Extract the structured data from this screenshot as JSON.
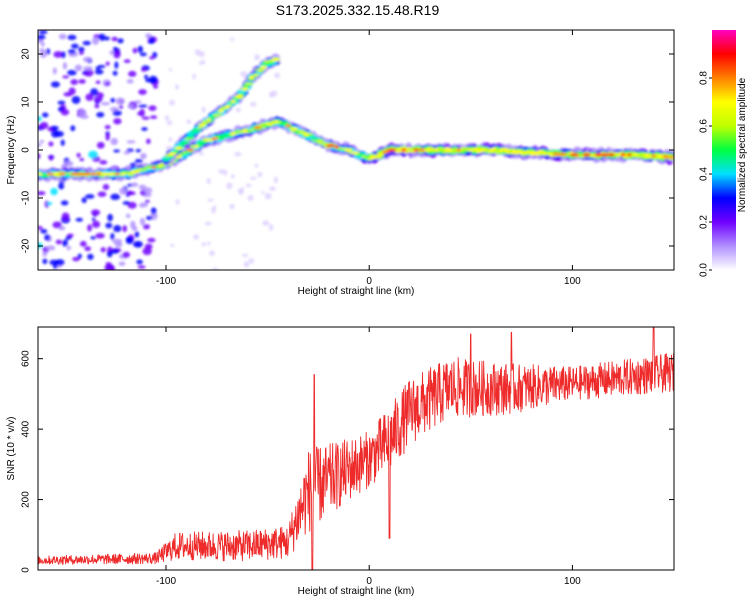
{
  "title": "S173.2025.332.15.48.R19",
  "chart_data": [
    {
      "type": "heatmap",
      "name": "spectrogram",
      "xlabel": "Height of straight line (km)",
      "ylabel": "Frequency (Hz)",
      "xlim": [
        -163,
        150
      ],
      "ylim": [
        -25,
        25
      ],
      "xticks": [
        -100,
        0,
        100
      ],
      "yticks": [
        -20,
        -10,
        0,
        10,
        20
      ],
      "colorbar": {
        "label": "Normalized spectral amplitude",
        "range": [
          0,
          1
        ],
        "ticks": [
          "0.0",
          "0.2",
          "0.4",
          "0.6",
          "0.8"
        ],
        "stops": [
          "#ffffff",
          "#b090ff",
          "#7000ff",
          "#0000ff",
          "#00e0ff",
          "#00ff40",
          "#c0ff00",
          "#ffff00",
          "#ff8000",
          "#ff0000",
          "#ff00c0"
        ]
      },
      "ridges": [
        {
          "label": "main ridge",
          "points": [
            [
              -163,
              -5
            ],
            [
              -120,
              -5
            ],
            [
              -100,
              -3
            ],
            [
              -80,
              2
            ],
            [
              -60,
              4
            ],
            [
              -45,
              6
            ],
            [
              -30,
              3
            ],
            [
              -20,
              1
            ],
            [
              -10,
              0
            ],
            [
              -5,
              -1
            ],
            [
              0,
              -2
            ],
            [
              10,
              0
            ],
            [
              30,
              0
            ],
            [
              60,
              0
            ],
            [
              100,
              -1
            ],
            [
              130,
              -1
            ],
            [
              150,
              -1.5
            ]
          ]
        },
        {
          "label": "upper ridge",
          "points": [
            [
              -100,
              -2
            ],
            [
              -90,
              2
            ],
            [
              -80,
              6
            ],
            [
              -70,
              9
            ],
            [
              -62,
              12
            ],
            [
              -58,
              15
            ],
            [
              -50,
              18
            ],
            [
              -45,
              19
            ]
          ]
        }
      ],
      "noise_region_x": [
        -163,
        -105
      ]
    },
    {
      "type": "line",
      "name": "snr",
      "xlabel": "Height of straight line (km)",
      "ylabel": "SNR (10 * v/v)",
      "xlim": [
        -163,
        150
      ],
      "ylim": [
        0,
        690
      ],
      "xticks": [
        -100,
        0,
        100
      ],
      "yticks": [
        0,
        200,
        400,
        600
      ],
      "color": "#ee2a2a",
      "envelope": [
        {
          "x": -163,
          "base": 25,
          "noise": 15
        },
        {
          "x": -105,
          "base": 30,
          "noise": 20
        },
        {
          "x": -95,
          "base": 60,
          "noise": 50
        },
        {
          "x": -60,
          "base": 60,
          "noise": 55
        },
        {
          "x": -40,
          "base": 70,
          "noise": 60
        },
        {
          "x": -30,
          "base": 200,
          "noise": 150
        },
        {
          "x": -15,
          "base": 250,
          "noise": 120
        },
        {
          "x": 0,
          "base": 300,
          "noise": 100
        },
        {
          "x": 10,
          "base": 350,
          "noise": 120
        },
        {
          "x": 20,
          "base": 430,
          "noise": 120
        },
        {
          "x": 40,
          "base": 500,
          "noise": 110
        },
        {
          "x": 70,
          "base": 500,
          "noise": 90
        },
        {
          "x": 100,
          "base": 520,
          "noise": 60
        },
        {
          "x": 150,
          "base": 550,
          "noise": 70
        }
      ],
      "dips": [
        {
          "x": -28,
          "value": 0
        },
        {
          "x": 10,
          "value": 90
        }
      ],
      "spikes": [
        {
          "x": -27,
          "value": 555
        },
        {
          "x": 50,
          "value": 670
        },
        {
          "x": 70,
          "value": 675
        },
        {
          "x": 140,
          "value": 690
        }
      ]
    }
  ]
}
